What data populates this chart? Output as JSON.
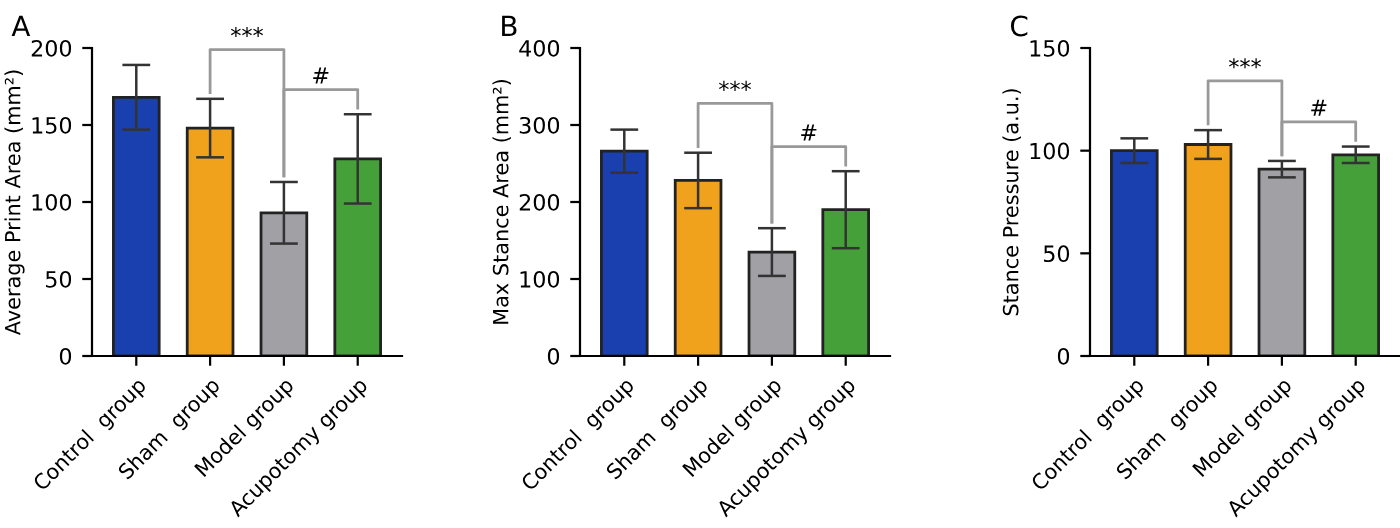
{
  "chart_data": [
    {
      "type": "bar",
      "title": "A",
      "ylabel": "Average Print Area (mm²)",
      "categories": [
        "Control  group",
        "Sham  group",
        "Model group",
        "Acupotomy group"
      ],
      "values": [
        168,
        148,
        93,
        128
      ],
      "errors": [
        21,
        19,
        20,
        29
      ],
      "colors": [
        "#1a3fae",
        "#f0a21c",
        "#a0a0a5",
        "#45a03a"
      ],
      "ylim": [
        0,
        200
      ],
      "yticks": [
        0,
        50,
        100,
        150,
        200
      ],
      "grid": false,
      "annotations": [
        "***",
        "#"
      ]
    },
    {
      "type": "bar",
      "title": "B",
      "ylabel": "Max Stance Area (mm²)",
      "categories": [
        "Control  group",
        "Sham  group",
        "Model group",
        "Acupotomy group"
      ],
      "values": [
        266,
        228,
        135,
        190
      ],
      "errors": [
        28,
        36,
        31,
        50
      ],
      "colors": [
        "#1a3fae",
        "#f0a21c",
        "#a0a0a5",
        "#45a03a"
      ],
      "ylim": [
        0,
        400
      ],
      "yticks": [
        0,
        100,
        200,
        300,
        400
      ],
      "grid": false,
      "annotations": [
        "***",
        "#"
      ]
    },
    {
      "type": "bar",
      "title": "C",
      "ylabel": "Stance Pressure (a.u.)",
      "categories": [
        "Control  group",
        "Sham  group",
        "Model group",
        "Acupotomy group"
      ],
      "values": [
        100,
        103,
        91,
        98
      ],
      "errors": [
        6,
        7,
        4,
        4
      ],
      "colors": [
        "#1a3fae",
        "#f0a21c",
        "#a0a0a5",
        "#45a03a"
      ],
      "ylim": [
        0,
        150
      ],
      "yticks": [
        0,
        50,
        100,
        150
      ],
      "grid": false,
      "annotations": [
        "***",
        "#"
      ]
    }
  ]
}
